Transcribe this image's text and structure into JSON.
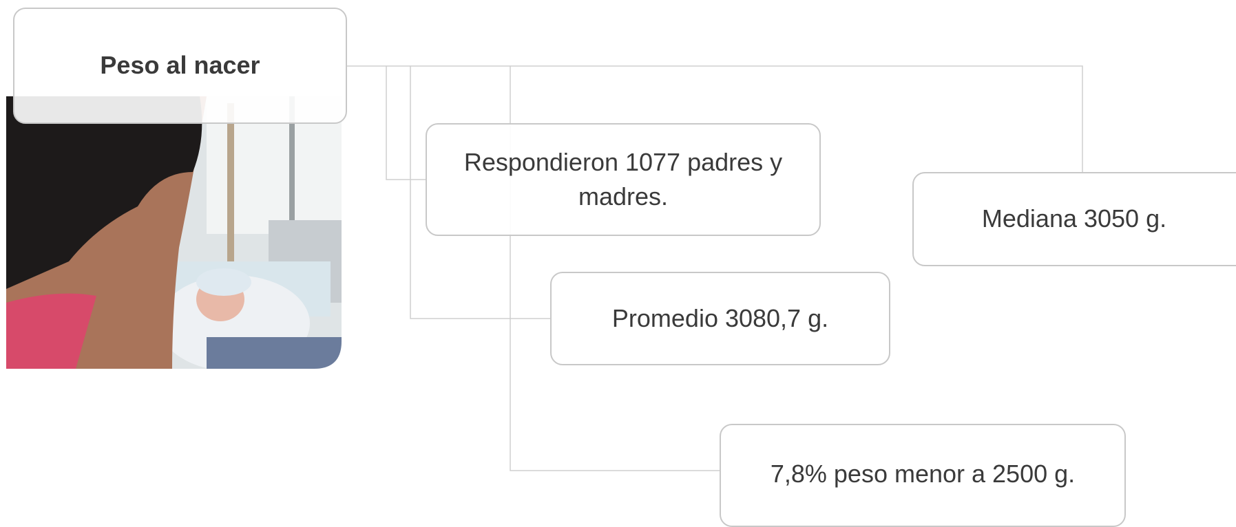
{
  "header": {
    "title": "Peso al nacer"
  },
  "nodes": [
    {
      "label": "Respondieron 1077 padres y madres."
    },
    {
      "label": "Mediana 3050 g."
    },
    {
      "label": "Promedio 3080,7 g."
    },
    {
      "label": "7,8% peso menor a 2500 g."
    }
  ]
}
